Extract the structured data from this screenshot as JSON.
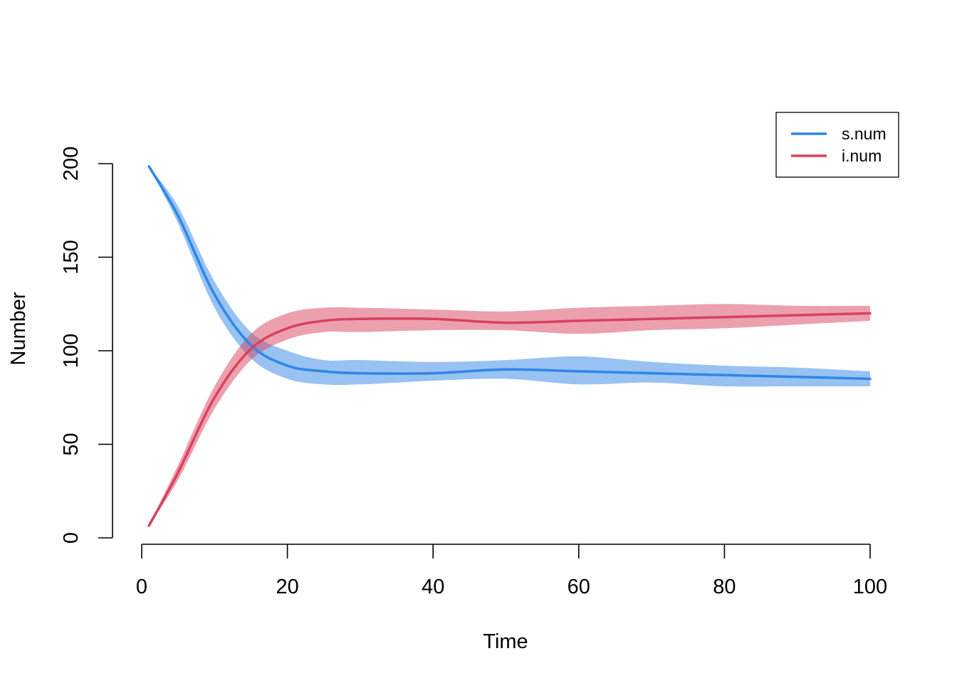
{
  "chart_data": {
    "type": "line",
    "xlabel": "Time",
    "ylabel": "Number",
    "xlim": [
      1,
      100
    ],
    "ylim": [
      0,
      200
    ],
    "xticks": [
      0,
      20,
      40,
      60,
      80,
      100
    ],
    "yticks": [
      0,
      50,
      100,
      150,
      200
    ],
    "grid": false,
    "legend_position": "top-right",
    "series": [
      {
        "name": "s.num",
        "color": "#2f86e6",
        "band_color": "#2f86e6",
        "x": [
          1,
          5,
          10,
          15,
          20,
          25,
          30,
          40,
          50,
          60,
          70,
          80,
          90,
          100
        ],
        "mean": [
          198.5,
          172,
          130,
          103,
          92,
          89,
          88,
          88,
          90,
          89,
          88,
          87,
          86,
          85
        ],
        "lower": [
          198.5,
          168,
          123,
          96,
          85,
          82,
          82,
          84,
          85,
          82,
          83,
          81,
          81,
          81
        ],
        "upper": [
          198.5,
          177,
          137,
          110,
          100,
          95,
          95,
          94,
          95,
          97,
          94,
          92,
          91,
          89
        ]
      },
      {
        "name": "i.num",
        "color": "#d9415e",
        "band_color": "#d9415e",
        "x": [
          1,
          5,
          10,
          15,
          20,
          25,
          30,
          40,
          50,
          60,
          70,
          80,
          90,
          100
        ],
        "mean": [
          6.5,
          35,
          75,
          101,
          112,
          116,
          117,
          117,
          115,
          116,
          117,
          118,
          119,
          120
        ],
        "lower": [
          6.5,
          31,
          69,
          95,
          106,
          110,
          110,
          111,
          111,
          109,
          111,
          112,
          114,
          116
        ],
        "upper": [
          6.5,
          39,
          81,
          109,
          120,
          123,
          123,
          122,
          121,
          123,
          124,
          125,
          124,
          124
        ]
      }
    ]
  }
}
